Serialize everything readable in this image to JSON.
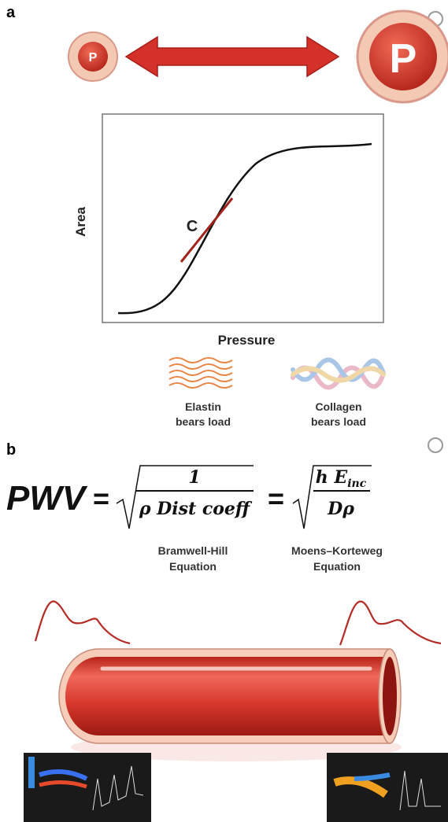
{
  "panel_a": {
    "label": "a",
    "small_vessel_label": "P",
    "large_vessel_label": "P",
    "graph": {
      "y_label": "Area",
      "x_label": "Pressure",
      "slope_label": "C"
    },
    "fibers": [
      {
        "line1": "Elastin",
        "line2": "bears load"
      },
      {
        "line1": "Collagen",
        "line2": "bears load"
      }
    ]
  },
  "panel_b": {
    "label": "b",
    "equation": {
      "lhs": "PWV",
      "eq1": "=",
      "num1": "1",
      "den1": "ρ Dist coeff",
      "eq2": "=",
      "num2_h": "h",
      "num2_E": "E",
      "num2_sub": "inc",
      "den2": "Dρ"
    },
    "equation_names": [
      {
        "line1": "Bramwell-Hill",
        "line2": "Equation"
      },
      {
        "line1": "Moens–Korteweg",
        "line2": "Equation"
      }
    ]
  }
}
